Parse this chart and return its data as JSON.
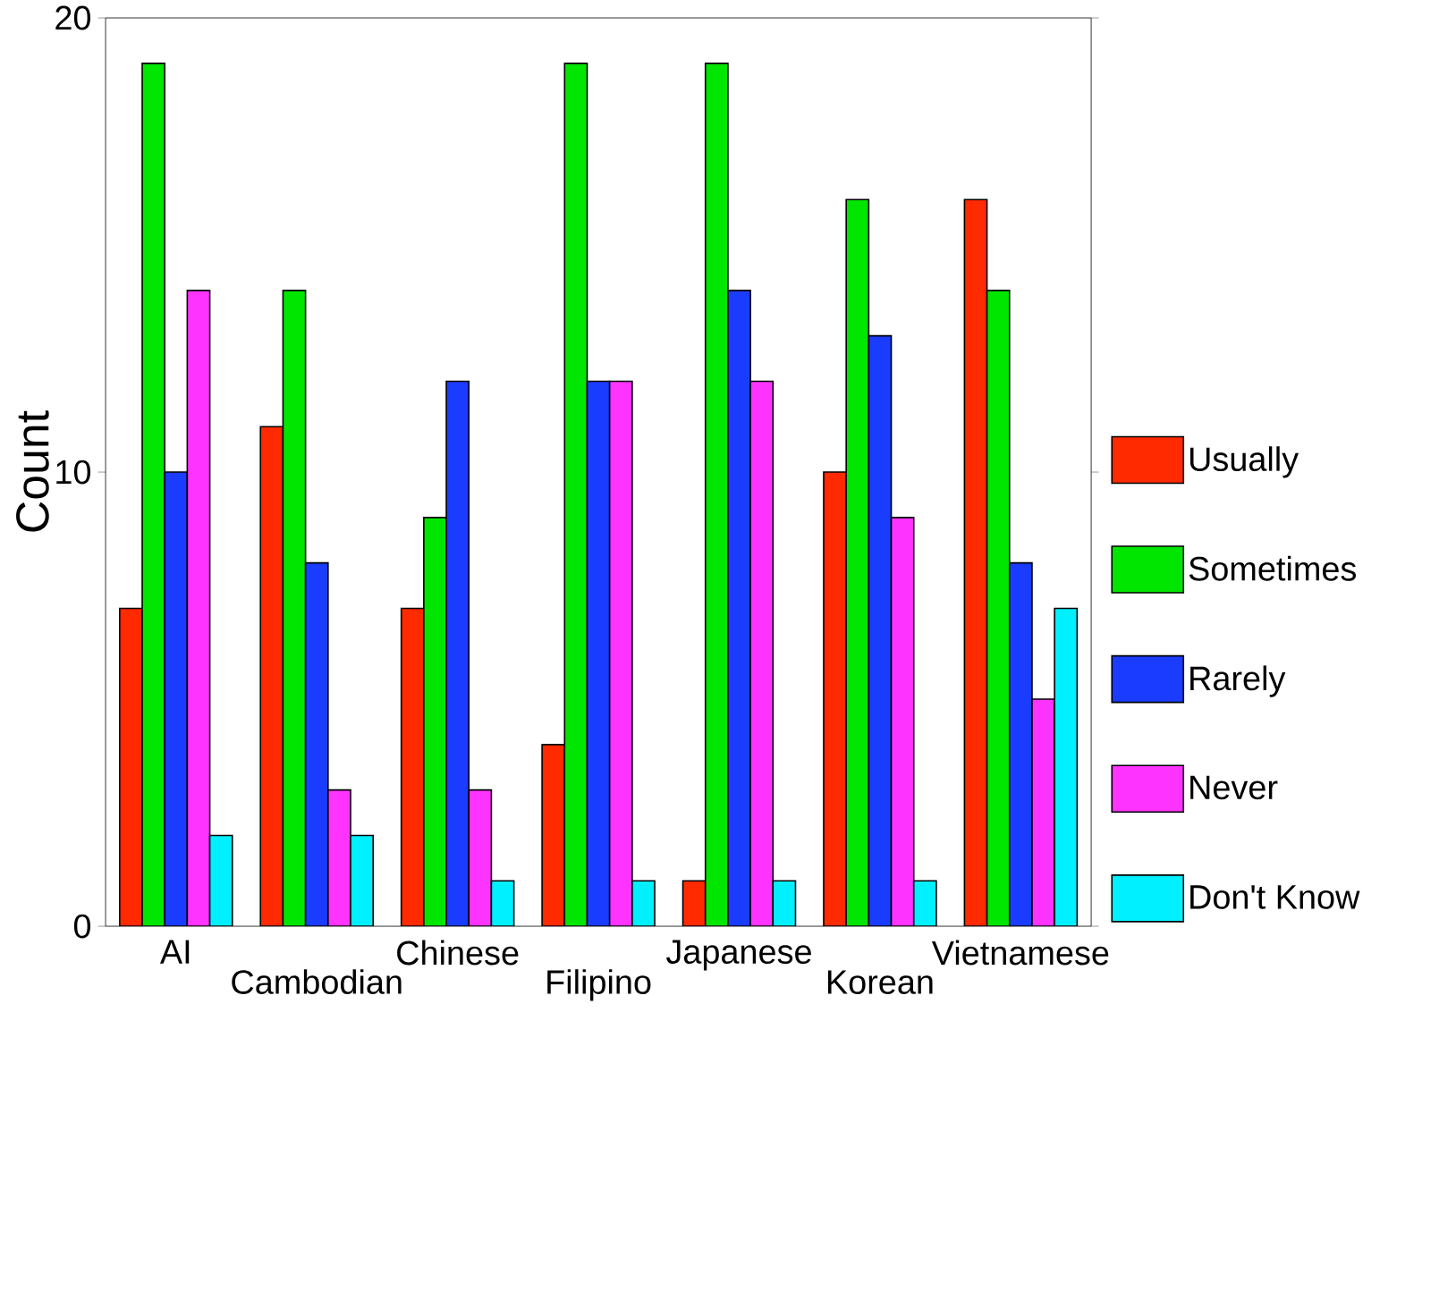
{
  "chart_data": {
    "type": "bar",
    "ylabel": "Count",
    "categories": [
      "AI",
      "Cambodian",
      "Chinese",
      "Filipino",
      "Japanese",
      "Korean",
      "Vietnamese"
    ],
    "series": [
      {
        "name": "Usually",
        "color": "#ff2a00",
        "values": [
          7,
          11,
          7,
          4,
          1,
          10,
          16
        ]
      },
      {
        "name": "Sometimes",
        "color": "#00e600",
        "values": [
          19,
          14,
          9,
          19,
          19,
          16,
          14
        ]
      },
      {
        "name": "Rarely",
        "color": "#1a3cff",
        "values": [
          10,
          8,
          12,
          12,
          14,
          13,
          8
        ]
      },
      {
        "name": "Never",
        "color": "#ff33ff",
        "values": [
          14,
          3,
          3,
          12,
          12,
          9,
          5
        ]
      },
      {
        "name": "Don't Know",
        "color": "#00f0ff",
        "values": [
          2,
          2,
          1,
          1,
          1,
          1,
          7
        ]
      }
    ],
    "ylim": [
      0,
      20
    ],
    "yticks": [
      0,
      10,
      20
    ],
    "legend": "right"
  }
}
